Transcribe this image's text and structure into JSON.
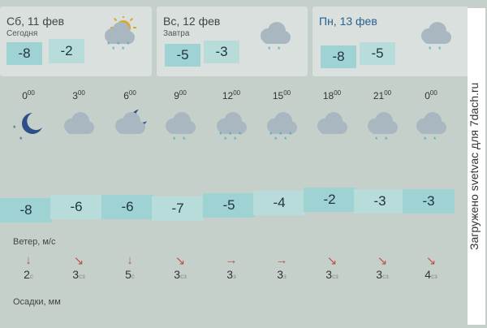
{
  "days": [
    {
      "date": "Сб, 11 фев",
      "sub": "Сегодня",
      "lo": "-8",
      "hi": "-2",
      "icon": "partly-sunny-snow-icon"
    },
    {
      "date": "Вс, 12 фев",
      "sub": "Завтра",
      "lo": "-5",
      "hi": "-3",
      "icon": "cloud-snow-icon"
    },
    {
      "date": "Пн, 13 фев",
      "sub": "",
      "lo": "-8",
      "hi": "-5",
      "icon": "cloud-snow-icon"
    }
  ],
  "hours": [
    {
      "h": "0",
      "temp": "-8",
      "icon": "moon-icon",
      "wind": "2",
      "dir": "с",
      "arrow": "↓"
    },
    {
      "h": "3",
      "temp": "-6",
      "icon": "cloud-icon",
      "wind": "3",
      "dir": "сз",
      "arrow": "↘"
    },
    {
      "h": "6",
      "temp": "-6",
      "icon": "cloud-moon-icon",
      "wind": "5",
      "dir": "с",
      "arrow": "↓"
    },
    {
      "h": "9",
      "temp": "-7",
      "icon": "cloud-snow-icon",
      "wind": "3",
      "dir": "сз",
      "arrow": "↘"
    },
    {
      "h": "12",
      "temp": "-5",
      "icon": "cloud-heavy-snow-icon",
      "wind": "3",
      "dir": "з",
      "arrow": "→"
    },
    {
      "h": "15",
      "temp": "-4",
      "icon": "cloud-heavy-snow-icon",
      "wind": "3",
      "dir": "з",
      "arrow": "→"
    },
    {
      "h": "18",
      "temp": "-2",
      "icon": "cloud-icon",
      "wind": "3",
      "dir": "сз",
      "arrow": "↘"
    },
    {
      "h": "21",
      "temp": "-3",
      "icon": "cloud-snow-icon",
      "wind": "3",
      "dir": "сз",
      "arrow": "↘"
    },
    {
      "h": "0",
      "temp": "-3",
      "icon": "cloud-snow-icon",
      "wind": "4",
      "dir": "сз",
      "arrow": "↘"
    }
  ],
  "hour_suffix": "00",
  "wind_label": "Ветер, м/с",
  "precip_label": "Осадки, мм",
  "watermark": "Загружено svetvac для 7dach.ru",
  "colors": {
    "date_today": "#444444",
    "date_monday": "#2b5f8f",
    "temp_cell": "#9fd2d3",
    "wind_arrow": "#b7584f"
  }
}
